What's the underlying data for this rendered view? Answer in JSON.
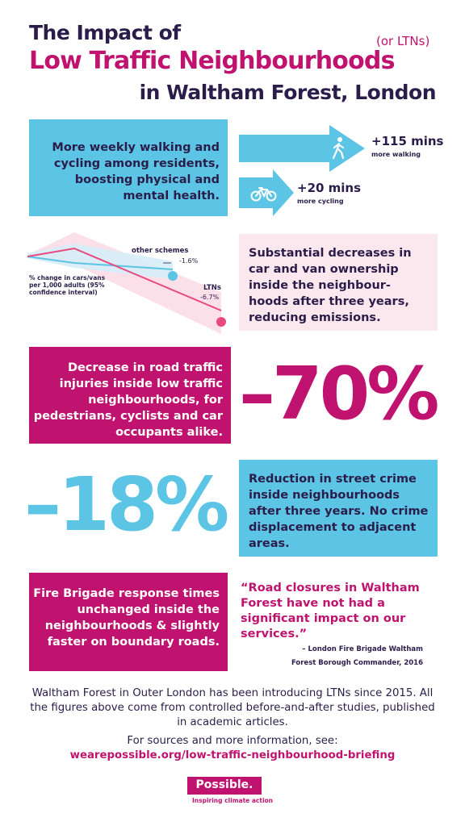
{
  "title": {
    "line1": "The Impact of",
    "aside": "(or LTNs)",
    "line2": "Low Traffic Neighbourhoods",
    "line3": "in Waltham Forest, London"
  },
  "activity": {
    "text": "More weekly walking and cycling among residents, boosting physical and mental health.",
    "walking": {
      "value": "+115 mins",
      "label": "more walking",
      "icon": "walking-person-icon"
    },
    "cycling": {
      "value": "+20 mins",
      "label": "more cycling",
      "icon": "bicycle-icon"
    }
  },
  "ownership": {
    "text": "Substantial decreases in car and van ownership inside the neighbour- hoods after three years, reducing emissions.",
    "chart_data": {
      "type": "line",
      "ylabel": "% change in cars/vans per 1,000 adults (95% confidence interval)",
      "series": [
        {
          "name": "other schemes",
          "value_label": "-1.6%",
          "values": [
            0,
            -0.8,
            -1.6
          ],
          "color": "#5cc4e4"
        },
        {
          "name": "LTNs",
          "value_label": "-6.7%",
          "values": [
            0,
            1.0,
            -6.7
          ],
          "color": "#e8497f"
        }
      ]
    }
  },
  "injuries": {
    "text": "Decrease in road traffic injuries inside low traffic neighbourhoods, for pedestrians, cyclists and car occupants alike.",
    "value": "–70%"
  },
  "crime": {
    "value": "–18%",
    "text": "Reduction in street crime inside neighbourhoods after three years. No crime displacement to adjacent areas."
  },
  "fire": {
    "text": "Fire Brigade response times unchanged inside the neighbourhoods & slightly faster on boundary roads.",
    "quote": "“Road closures in Waltham Forest have not had a significant impact on our services.”",
    "attribution_line1": "– London Fire Brigade Waltham",
    "attribution_line2": "Forest Borough Commander, 2016"
  },
  "footer": {
    "about": "Waltham Forest in Outer London has been introducing LTNs since 2015. All the figures above come from controlled before-and-after studies, published in academic articles.",
    "sources_intro": "For sources and more information, see:",
    "link": "wearepossible.org/low-traffic-neighbourhood-briefing",
    "logo": "Possible.",
    "tagline": "Inspiring climate action"
  },
  "colors": {
    "navy": "#2b1d4a",
    "magenta": "#c0136f",
    "blue": "#5cc4e4",
    "pink_light": "#fbe8ef",
    "ltn_line": "#e8497f"
  }
}
